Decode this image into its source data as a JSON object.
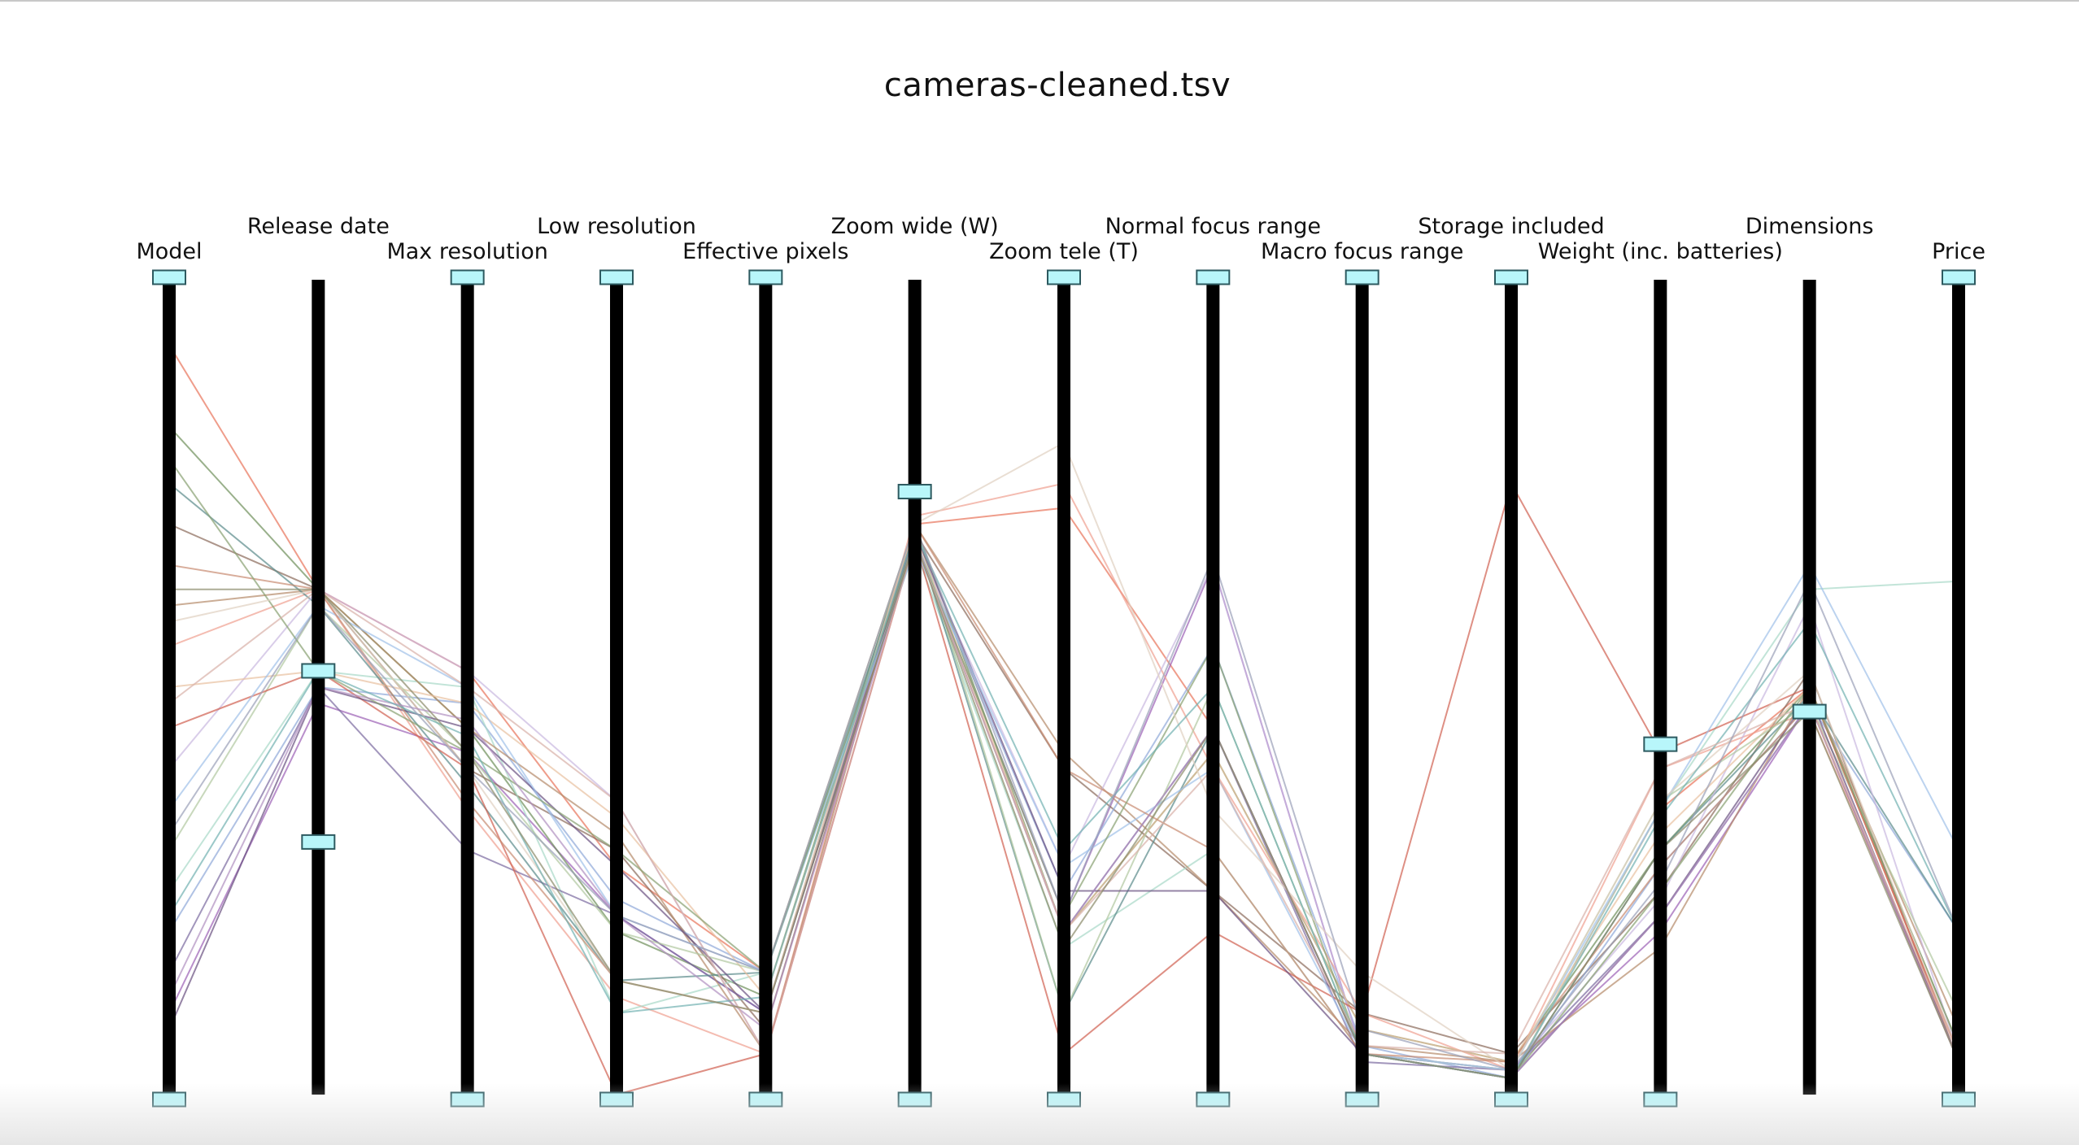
{
  "title": "cameras-cleaned.tsv",
  "colors": {
    "axis": "#000000",
    "handle_fill": "#b8f6fa",
    "handle_stroke": "#2d5a60",
    "background": "#ffffff"
  },
  "chart_data": {
    "type": "parallel-coordinates",
    "title": "cameras-cleaned.tsv",
    "axes": [
      {
        "name": "Model",
        "filter": [
          0.0,
          1.0
        ]
      },
      {
        "name": "Release date",
        "filter": [
          0.31,
          0.52
        ]
      },
      {
        "name": "Max resolution",
        "filter": [
          0.0,
          1.0
        ]
      },
      {
        "name": "Low resolution",
        "filter": [
          0.0,
          1.0
        ]
      },
      {
        "name": "Effective pixels",
        "filter": [
          0.0,
          1.0
        ]
      },
      {
        "name": "Zoom wide (W)",
        "filter": [
          0.0,
          0.74
        ]
      },
      {
        "name": "Zoom tele (T)",
        "filter": [
          0.0,
          1.0
        ]
      },
      {
        "name": "Normal focus range",
        "filter": [
          0.0,
          1.0
        ]
      },
      {
        "name": "Macro focus range",
        "filter": [
          0.0,
          1.0
        ]
      },
      {
        "name": "Storage included",
        "filter": [
          0.0,
          1.0
        ]
      },
      {
        "name": "Weight (inc. batteries)",
        "filter": [
          0.0,
          0.43
        ]
      },
      {
        "name": "Dimensions",
        "filter": [
          0.0,
          0.47
        ]
      },
      {
        "name": "Price",
        "filter": [
          0.0,
          1.0
        ]
      }
    ],
    "series": [
      {
        "color": "#e8735a",
        "values": [
          0.92,
          0.62,
          0.52,
          0.28,
          0.15,
          0.7,
          0.72,
          0.45,
          0.05,
          0.02,
          0.35,
          0.5,
          0.05
        ]
      },
      {
        "color": "#9b5fb5",
        "values": [
          0.1,
          0.48,
          0.42,
          0.22,
          0.1,
          0.68,
          0.22,
          0.65,
          0.05,
          0.03,
          0.2,
          0.48,
          0.04
        ]
      },
      {
        "color": "#6d8f5a",
        "values": [
          0.82,
          0.62,
          0.45,
          0.2,
          0.12,
          0.7,
          0.2,
          0.42,
          0.08,
          0.04,
          0.3,
          0.5,
          0.06
        ]
      },
      {
        "color": "#8a6a5a",
        "values": [
          0.7,
          0.62,
          0.4,
          0.3,
          0.08,
          0.69,
          0.4,
          0.25,
          0.1,
          0.05,
          0.25,
          0.52,
          0.04
        ]
      },
      {
        "color": "#8fa8d8",
        "values": [
          0.2,
          0.5,
          0.48,
          0.24,
          0.15,
          0.68,
          0.25,
          0.55,
          0.06,
          0.02,
          0.28,
          0.48,
          0.2
        ]
      },
      {
        "color": "#f0a090",
        "values": [
          0.55,
          0.62,
          0.35,
          0.12,
          0.05,
          0.71,
          0.75,
          0.4,
          0.1,
          0.03,
          0.4,
          0.47,
          0.05
        ]
      },
      {
        "color": "#a8d8c8",
        "values": [
          0.25,
          0.52,
          0.5,
          0.1,
          0.15,
          0.67,
          0.18,
          0.3,
          0.05,
          0.02,
          0.35,
          0.62,
          0.63
        ]
      },
      {
        "color": "#7a6aa0",
        "values": [
          0.15,
          0.5,
          0.3,
          0.22,
          0.1,
          0.68,
          0.2,
          0.45,
          0.04,
          0.03,
          0.22,
          0.48,
          0.04
        ]
      },
      {
        "color": "#b58a6a",
        "values": [
          0.6,
          0.62,
          0.45,
          0.32,
          0.05,
          0.7,
          0.42,
          0.25,
          0.06,
          0.04,
          0.18,
          0.5,
          0.08
        ]
      },
      {
        "color": "#5a8a8a",
        "values": [
          0.75,
          0.6,
          0.38,
          0.14,
          0.15,
          0.69,
          0.1,
          0.45,
          0.05,
          0.02,
          0.3,
          0.49,
          0.2
        ]
      },
      {
        "color": "#c9b8e0",
        "values": [
          0.4,
          0.62,
          0.52,
          0.36,
          0.05,
          0.68,
          0.28,
          0.65,
          0.05,
          0.03,
          0.24,
          0.6,
          0.05
        ]
      },
      {
        "color": "#e8c0a0",
        "values": [
          0.5,
          0.52,
          0.48,
          0.34,
          0.12,
          0.69,
          0.2,
          0.42,
          0.08,
          0.04,
          0.32,
          0.5,
          0.05
        ]
      },
      {
        "color": "#b0c8a0",
        "values": [
          0.3,
          0.6,
          0.42,
          0.2,
          0.15,
          0.7,
          0.1,
          0.5,
          0.05,
          0.03,
          0.36,
          0.48,
          0.1
        ]
      },
      {
        "color": "#d06050",
        "values": [
          0.45,
          0.52,
          0.4,
          0.0,
          0.05,
          0.68,
          0.05,
          0.2,
          0.1,
          0.75,
          0.42,
          0.5,
          0.05
        ]
      },
      {
        "color": "#6a5080",
        "values": [
          0.08,
          0.5,
          0.45,
          0.28,
          0.1,
          0.69,
          0.25,
          0.25,
          0.05,
          0.02,
          0.22,
          0.49,
          0.04
        ]
      },
      {
        "color": "#a0c0e8",
        "values": [
          0.35,
          0.6,
          0.5,
          0.22,
          0.15,
          0.67,
          0.28,
          0.4,
          0.05,
          0.03,
          0.35,
          0.65,
          0.3
        ]
      },
      {
        "color": "#c88a70",
        "values": [
          0.65,
          0.62,
          0.36,
          0.14,
          0.1,
          0.7,
          0.4,
          0.3,
          0.05,
          0.04,
          0.28,
          0.48,
          0.04
        ]
      },
      {
        "color": "#88a070",
        "values": [
          0.78,
          0.52,
          0.42,
          0.3,
          0.15,
          0.68,
          0.22,
          0.55,
          0.05,
          0.02,
          0.25,
          0.5,
          0.06
        ]
      },
      {
        "color": "#e0d0c0",
        "values": [
          0.58,
          0.62,
          0.4,
          0.14,
          0.1,
          0.7,
          0.8,
          0.35,
          0.15,
          0.03,
          0.36,
          0.52,
          0.05
        ]
      },
      {
        "color": "#b090c0",
        "values": [
          0.12,
          0.5,
          0.46,
          0.22,
          0.08,
          0.68,
          0.2,
          0.45,
          0.05,
          0.02,
          0.22,
          0.48,
          0.04
        ]
      },
      {
        "color": "#70b0b0",
        "values": [
          0.22,
          0.52,
          0.44,
          0.1,
          0.12,
          0.69,
          0.3,
          0.5,
          0.05,
          0.02,
          0.34,
          0.58,
          0.2
        ]
      },
      {
        "color": "#d8b0a8",
        "values": [
          0.48,
          0.62,
          0.5,
          0.36,
          0.05,
          0.68,
          0.2,
          0.4,
          0.06,
          0.05,
          0.4,
          0.48,
          0.05
        ]
      },
      {
        "color": "#9aa0b8",
        "values": [
          0.32,
          0.6,
          0.4,
          0.22,
          0.15,
          0.7,
          0.22,
          0.66,
          0.08,
          0.03,
          0.26,
          0.63,
          0.2
        ]
      },
      {
        "color": "#8a8a6a",
        "values": [
          0.62,
          0.62,
          0.42,
          0.14,
          0.1,
          0.68,
          0.18,
          0.45,
          0.05,
          0.02,
          0.3,
          0.47,
          0.04
        ]
      }
    ]
  }
}
